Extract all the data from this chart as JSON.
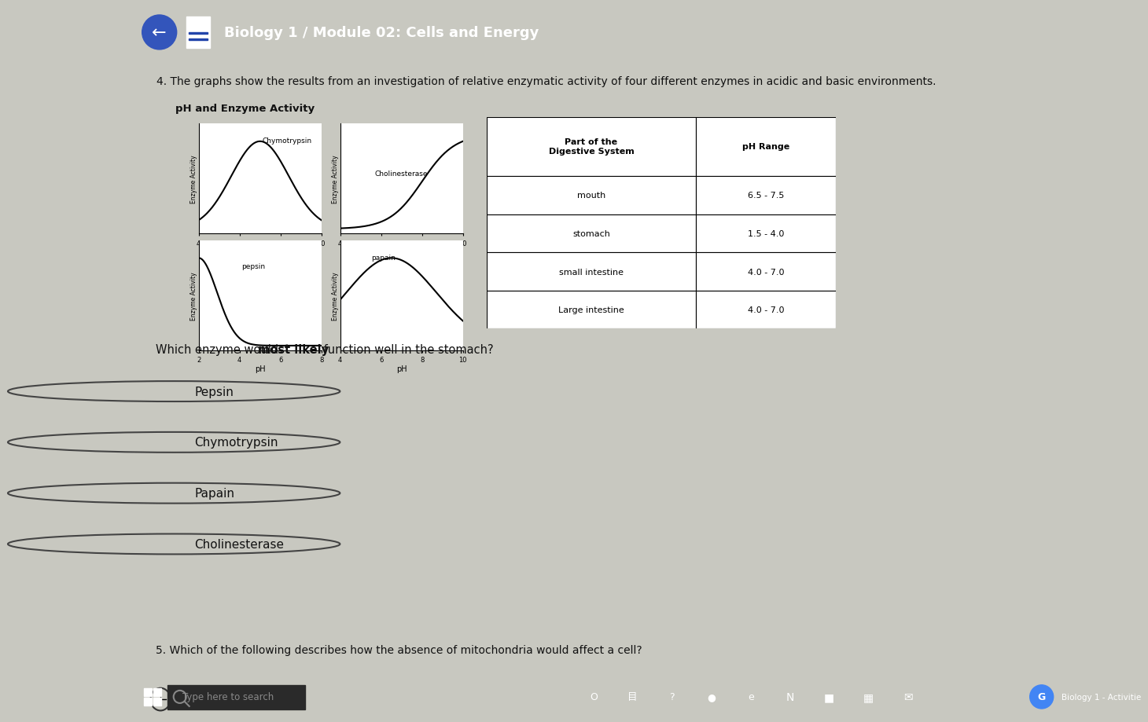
{
  "title_bar": "Biology 1 / Module 02: Cells and Energy",
  "title_bar_bg": "#2244aa",
  "title_bar_text_color": "#ffffff",
  "question4_text": "4. The graphs show the results from an investigation of relative enzymatic activity of four different enzymes in acidic and basic environments.",
  "graph_title": "pH and Enzyme Activity",
  "table_headers": [
    "Part of the\nDigestive System",
    "pH Range"
  ],
  "table_rows": [
    [
      "mouth",
      "6.5 - 7.5"
    ],
    [
      "stomach",
      "1.5 - 4.0"
    ],
    [
      "small intestine",
      "4.0 - 7.0"
    ],
    [
      "Large intestine",
      "4.0 - 7.0"
    ]
  ],
  "question_pre": "Which enzyme would ",
  "question_bold": "most likely",
  "question_post": " function well in the stomach?",
  "options": [
    "Pepsin",
    "Chymotrypsin",
    "Papain",
    "Cholinesterase"
  ],
  "question5_text": "5. Which of the following describes how the absence of mitochondria would affect a cell?",
  "bg_color": "#c8c8c0",
  "plot_bg": "#ffffff",
  "taskbar_bg": "#111111",
  "taskbar_search": "Type here to search",
  "taskbar_right": "Biology 1 - Activitie"
}
